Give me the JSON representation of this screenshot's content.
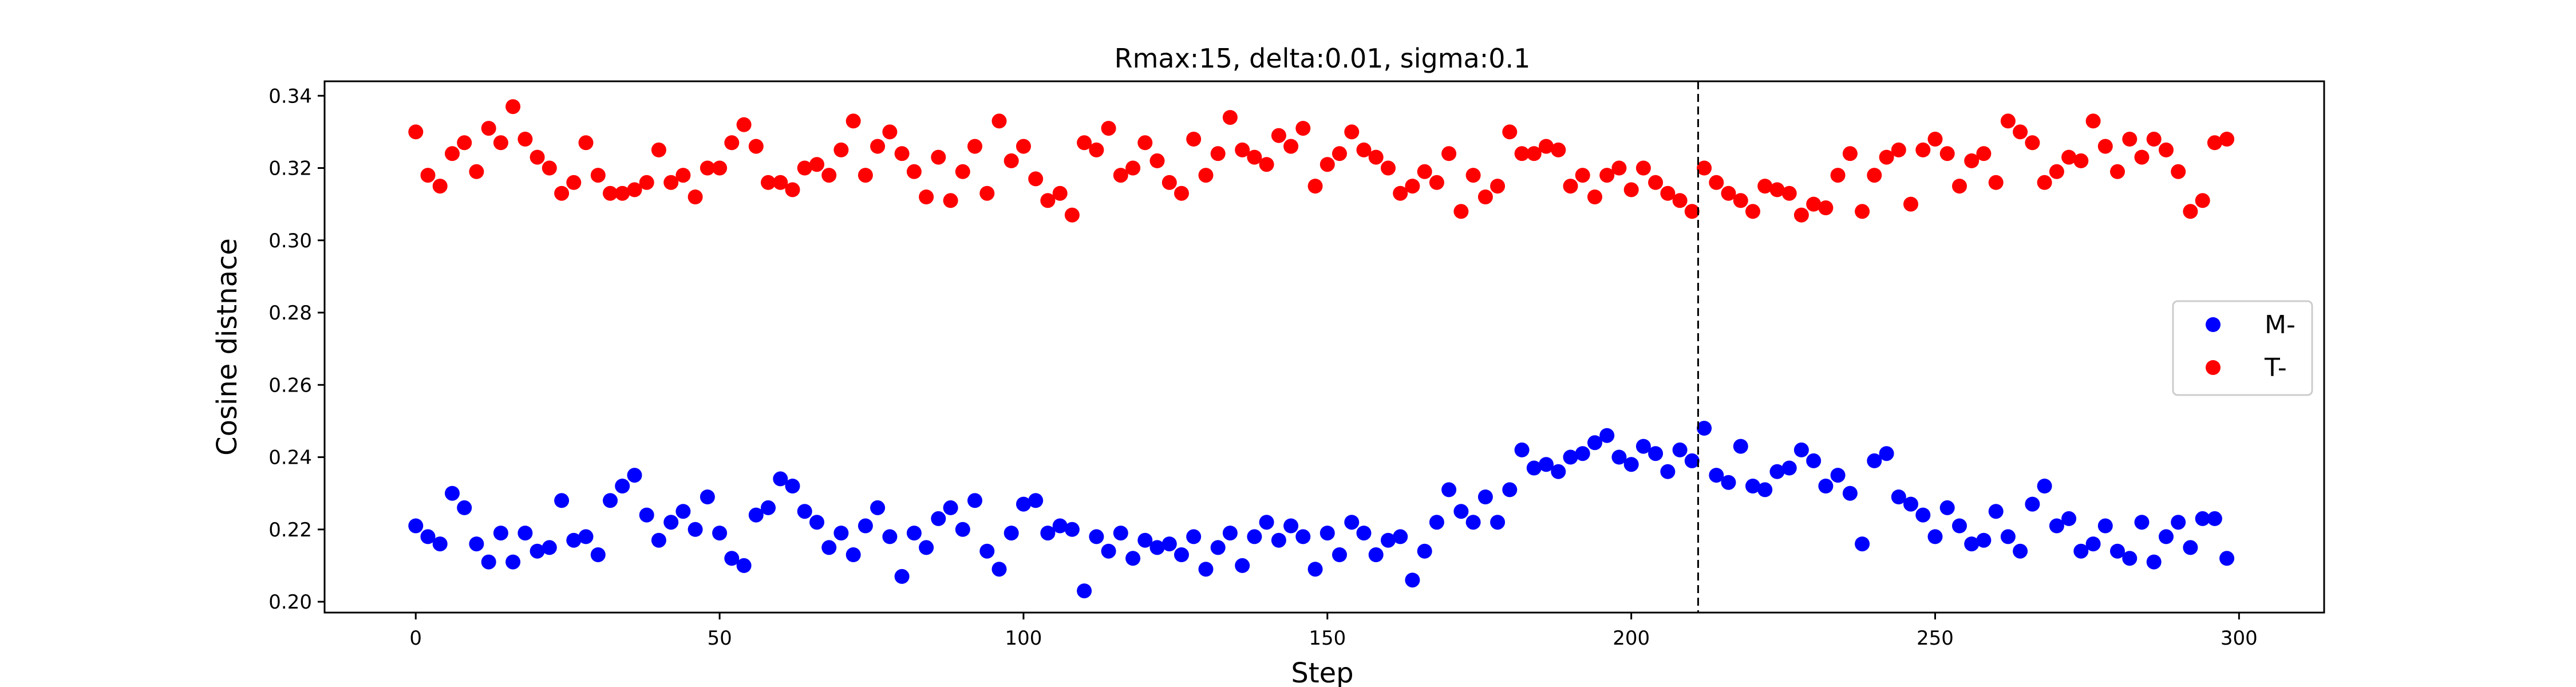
{
  "chart_data": {
    "type": "scatter",
    "title": "Rmax:15, delta:0.01, sigma:0.1",
    "xlabel": "Step",
    "ylabel": "Cosine distnace",
    "xlim": [
      -15,
      314
    ],
    "ylim": [
      0.197,
      0.344
    ],
    "xticks": [
      0,
      50,
      100,
      150,
      200,
      250,
      300
    ],
    "yticks": [
      0.2,
      0.22,
      0.24,
      0.26,
      0.28,
      0.3,
      0.32,
      0.34
    ],
    "ytick_labels": [
      "0.20",
      "0.22",
      "0.24",
      "0.26",
      "0.28",
      "0.30",
      "0.32",
      "0.34"
    ],
    "vline_x": 211,
    "legend_position": "center-right",
    "grid": false,
    "series": [
      {
        "name": "M-",
        "color": "#0000ff",
        "x": [
          0,
          2,
          4,
          6,
          8,
          10,
          12,
          14,
          16,
          18,
          20,
          22,
          24,
          26,
          28,
          30,
          32,
          34,
          36,
          38,
          40,
          42,
          44,
          46,
          48,
          50,
          52,
          54,
          56,
          58,
          60,
          62,
          64,
          66,
          68,
          70,
          72,
          74,
          76,
          78,
          80,
          82,
          84,
          86,
          88,
          90,
          92,
          94,
          96,
          98,
          100,
          102,
          104,
          106,
          108,
          110,
          112,
          114,
          116,
          118,
          120,
          122,
          124,
          126,
          128,
          130,
          132,
          134,
          136,
          138,
          140,
          142,
          144,
          146,
          148,
          150,
          152,
          154,
          156,
          158,
          160,
          162,
          164,
          166,
          168,
          170,
          172,
          174,
          176,
          178,
          180,
          182,
          184,
          186,
          188,
          190,
          192,
          194,
          196,
          198,
          200,
          202,
          204,
          206,
          208,
          210,
          212,
          214,
          216,
          218,
          220,
          222,
          224,
          226,
          228,
          230,
          232,
          234,
          236,
          238,
          240,
          242,
          244,
          246,
          248,
          250,
          252,
          254,
          256,
          258,
          260,
          262,
          264,
          266,
          268,
          270,
          272,
          274,
          276,
          278,
          280,
          282,
          284,
          286,
          288,
          290,
          292,
          294,
          296,
          298
        ],
        "y": [
          0.221,
          0.218,
          0.216,
          0.23,
          0.226,
          0.216,
          0.211,
          0.219,
          0.211,
          0.219,
          0.214,
          0.215,
          0.228,
          0.217,
          0.218,
          0.213,
          0.228,
          0.232,
          0.235,
          0.224,
          0.217,
          0.222,
          0.225,
          0.22,
          0.229,
          0.219,
          0.212,
          0.21,
          0.224,
          0.226,
          0.234,
          0.232,
          0.225,
          0.222,
          0.215,
          0.219,
          0.213,
          0.221,
          0.226,
          0.218,
          0.207,
          0.219,
          0.215,
          0.223,
          0.226,
          0.22,
          0.228,
          0.214,
          0.209,
          0.219,
          0.227,
          0.228,
          0.219,
          0.221,
          0.22,
          0.203,
          0.218,
          0.214,
          0.219,
          0.212,
          0.217,
          0.215,
          0.216,
          0.213,
          0.218,
          0.209,
          0.215,
          0.219,
          0.21,
          0.218,
          0.222,
          0.217,
          0.221,
          0.218,
          0.209,
          0.219,
          0.213,
          0.222,
          0.219,
          0.213,
          0.217,
          0.218,
          0.206,
          0.214,
          0.222,
          0.231,
          0.225,
          0.222,
          0.229,
          0.222,
          0.231,
          0.242,
          0.237,
          0.238,
          0.236,
          0.24,
          0.241,
          0.244,
          0.246,
          0.24,
          0.238,
          0.243,
          0.241,
          0.236,
          0.242,
          0.239,
          0.248,
          0.235,
          0.233,
          0.243,
          0.232,
          0.231,
          0.236,
          0.237,
          0.242,
          0.239,
          0.232,
          0.235,
          0.23,
          0.216,
          0.239,
          0.241,
          0.229,
          0.227,
          0.224,
          0.218,
          0.226,
          0.221,
          0.216,
          0.217,
          0.225,
          0.218,
          0.214,
          0.227,
          0.232,
          0.221,
          0.223,
          0.214,
          0.216,
          0.221,
          0.214,
          0.212,
          0.222,
          0.211,
          0.218,
          0.222,
          0.215,
          0.223,
          0.223,
          0.212
        ]
      },
      {
        "name": "T-",
        "color": "#ff0000",
        "x": [
          0,
          2,
          4,
          6,
          8,
          10,
          12,
          14,
          16,
          18,
          20,
          22,
          24,
          26,
          28,
          30,
          32,
          34,
          36,
          38,
          40,
          42,
          44,
          46,
          48,
          50,
          52,
          54,
          56,
          58,
          60,
          62,
          64,
          66,
          68,
          70,
          72,
          74,
          76,
          78,
          80,
          82,
          84,
          86,
          88,
          90,
          92,
          94,
          96,
          98,
          100,
          102,
          104,
          106,
          108,
          110,
          112,
          114,
          116,
          118,
          120,
          122,
          124,
          126,
          128,
          130,
          132,
          134,
          136,
          138,
          140,
          142,
          144,
          146,
          148,
          150,
          152,
          154,
          156,
          158,
          160,
          162,
          164,
          166,
          168,
          170,
          172,
          174,
          176,
          178,
          180,
          182,
          184,
          186,
          188,
          190,
          192,
          194,
          196,
          198,
          200,
          202,
          204,
          206,
          208,
          210,
          212,
          214,
          216,
          218,
          220,
          222,
          224,
          226,
          228,
          230,
          232,
          234,
          236,
          238,
          240,
          242,
          244,
          246,
          248,
          250,
          252,
          254,
          256,
          258,
          260,
          262,
          264,
          266,
          268,
          270,
          272,
          274,
          276,
          278,
          280,
          282,
          284,
          286,
          288,
          290,
          292,
          294,
          296,
          298
        ],
        "y": [
          0.33,
          0.318,
          0.315,
          0.324,
          0.327,
          0.319,
          0.331,
          0.327,
          0.337,
          0.328,
          0.323,
          0.32,
          0.313,
          0.316,
          0.327,
          0.318,
          0.313,
          0.313,
          0.314,
          0.316,
          0.325,
          0.316,
          0.318,
          0.312,
          0.32,
          0.32,
          0.327,
          0.332,
          0.326,
          0.316,
          0.316,
          0.314,
          0.32,
          0.321,
          0.318,
          0.325,
          0.333,
          0.318,
          0.326,
          0.33,
          0.324,
          0.319,
          0.312,
          0.323,
          0.311,
          0.319,
          0.326,
          0.313,
          0.333,
          0.322,
          0.326,
          0.317,
          0.311,
          0.313,
          0.307,
          0.327,
          0.325,
          0.331,
          0.318,
          0.32,
          0.327,
          0.322,
          0.316,
          0.313,
          0.328,
          0.318,
          0.324,
          0.334,
          0.325,
          0.323,
          0.321,
          0.329,
          0.326,
          0.331,
          0.315,
          0.321,
          0.324,
          0.33,
          0.325,
          0.323,
          0.32,
          0.313,
          0.315,
          0.319,
          0.316,
          0.324,
          0.308,
          0.318,
          0.312,
          0.315,
          0.33,
          0.324,
          0.324,
          0.326,
          0.325,
          0.315,
          0.318,
          0.312,
          0.318,
          0.32,
          0.314,
          0.32,
          0.316,
          0.313,
          0.311,
          0.308,
          0.32,
          0.316,
          0.313,
          0.311,
          0.308,
          0.315,
          0.314,
          0.313,
          0.307,
          0.31,
          0.309,
          0.318,
          0.324,
          0.308,
          0.318,
          0.323,
          0.325,
          0.31,
          0.325,
          0.328,
          0.324,
          0.315,
          0.322,
          0.324,
          0.316,
          0.333,
          0.33,
          0.327,
          0.316,
          0.319,
          0.323,
          0.322,
          0.333,
          0.326,
          0.319,
          0.328,
          0.323,
          0.328,
          0.325,
          0.319,
          0.308,
          0.311,
          0.327,
          0.328
        ]
      }
    ]
  }
}
